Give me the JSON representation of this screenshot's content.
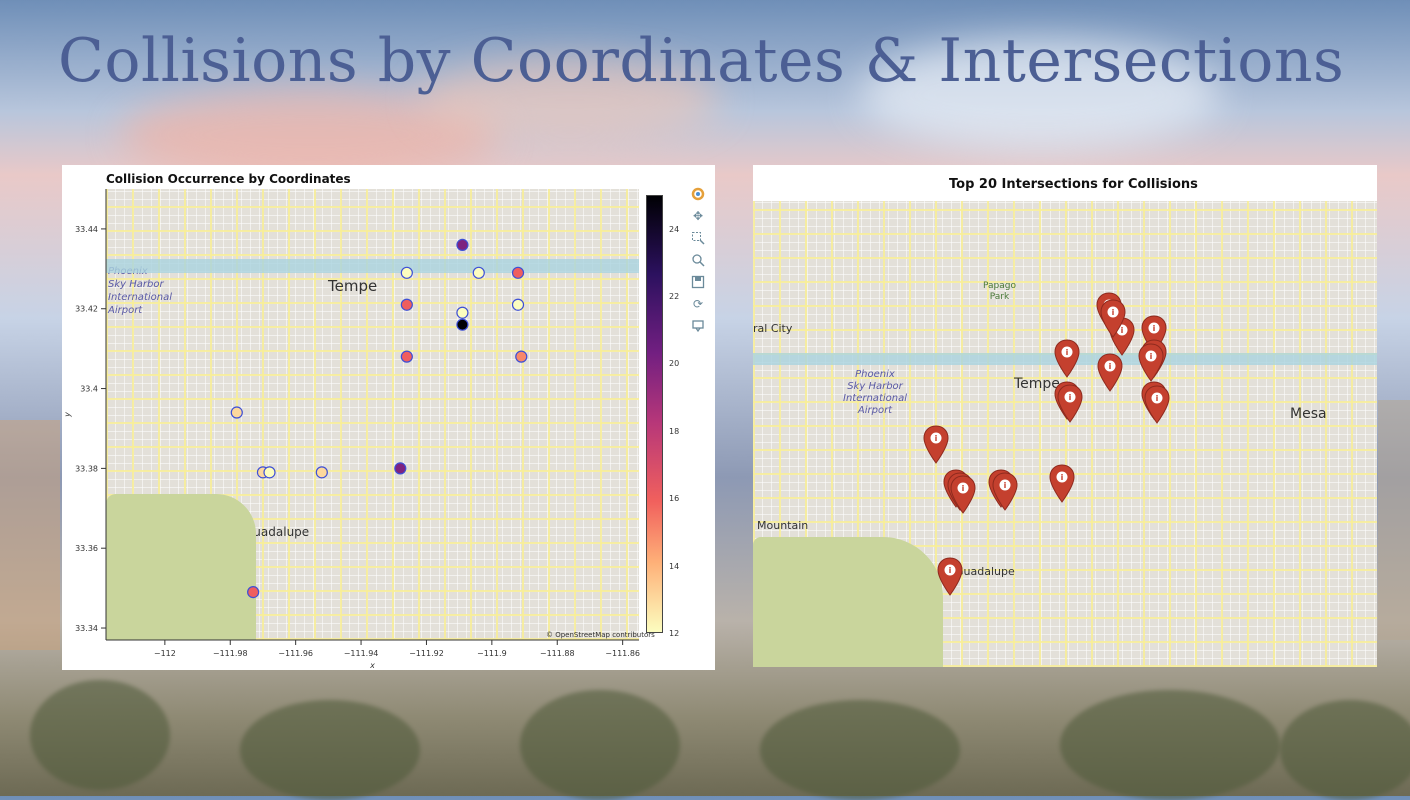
{
  "slide": {
    "title": "Collisions by Coordinates & Intersections"
  },
  "left_chart": {
    "title": "Collision Occurrence by Coordinates",
    "attribution": "© OpenStreetMap contributors",
    "map_labels": {
      "city": "Tempe",
      "guadalupe": "Guadalupe",
      "airport": "Phoenix\nSky Harbor\nInternational\nAirport"
    },
    "toolbar_icons": [
      "bokeh-logo-icon",
      "pan-icon",
      "box-zoom-icon",
      "wheel-zoom-icon",
      "save-icon",
      "reset-icon",
      "hover-icon"
    ],
    "colorbar_ticks": [
      "24",
      "22",
      "20",
      "18",
      "16",
      "14",
      "12"
    ]
  },
  "right_chart": {
    "title": "Top 20 Intersections for Collisions",
    "map_labels": {
      "city": "Tempe",
      "mesa": "Mesa",
      "guadalupe": "Guadalupe",
      "airport": "Phoenix\nSky Harbor\nInternational\nAirport",
      "papago": "Papago\nPark",
      "mountain": "Mountain",
      "ral_city": "ral City"
    },
    "pin_count": 20
  },
  "chart_data": [
    {
      "type": "scatter",
      "title": "Collision Occurrence by Coordinates",
      "xlabel": "x",
      "ylabel": "y",
      "xlim": [
        -112.018,
        -111.855
      ],
      "ylim": [
        33.337,
        33.45
      ],
      "x_ticks": [
        -112,
        -111.98,
        -111.96,
        -111.94,
        -111.92,
        -111.9,
        -111.88,
        -111.86
      ],
      "x_tick_labels": [
        "−112",
        "−111.98",
        "−111.96",
        "−111.94",
        "−111.92",
        "−111.9",
        "−111.88",
        "−111.86"
      ],
      "y_ticks": [
        33.34,
        33.36,
        33.38,
        33.4,
        33.42,
        33.44
      ],
      "y_tick_labels": [
        "33.34",
        "33.36",
        "33.38",
        "33.4",
        "33.42",
        "33.44"
      ],
      "color_scale": {
        "min": 12,
        "max": 25,
        "palette": "magma_r"
      },
      "points": [
        {
          "x": -111.909,
          "y": 33.436,
          "count": 20
        },
        {
          "x": -111.904,
          "y": 33.429,
          "count": 12
        },
        {
          "x": -111.926,
          "y": 33.429,
          "count": 12
        },
        {
          "x": -111.892,
          "y": 33.429,
          "count": 16
        },
        {
          "x": -111.926,
          "y": 33.421,
          "count": 16
        },
        {
          "x": -111.892,
          "y": 33.421,
          "count": 12
        },
        {
          "x": -111.909,
          "y": 33.419,
          "count": 12
        },
        {
          "x": -111.909,
          "y": 33.416,
          "count": 25
        },
        {
          "x": -111.926,
          "y": 33.408,
          "count": 16
        },
        {
          "x": -111.891,
          "y": 33.408,
          "count": 15
        },
        {
          "x": -111.978,
          "y": 33.394,
          "count": 13
        },
        {
          "x": -111.928,
          "y": 33.38,
          "count": 20
        },
        {
          "x": -111.97,
          "y": 33.379,
          "count": 13
        },
        {
          "x": -111.968,
          "y": 33.379,
          "count": 12
        },
        {
          "x": -111.952,
          "y": 33.379,
          "count": 13
        },
        {
          "x": -111.973,
          "y": 33.349,
          "count": 16
        }
      ],
      "legend": "colorbar-right",
      "grid": false
    },
    {
      "type": "scatter",
      "title": "Top 20 Intersections for Collisions",
      "marker": "map-pin",
      "note": "basemap with 20 intersection markers"
    }
  ]
}
